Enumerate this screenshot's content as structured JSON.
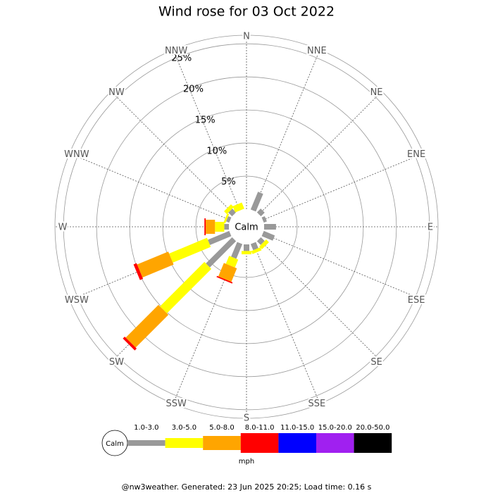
{
  "chart_data": {
    "type": "windrose",
    "title": "Wind rose for 03 Oct 2022",
    "directions": [
      "N",
      "NNE",
      "NE",
      "ENE",
      "E",
      "ESE",
      "SE",
      "SSE",
      "S",
      "SSW",
      "SW",
      "WSW",
      "W",
      "WNW",
      "NW",
      "NNW"
    ],
    "center_label": "Calm",
    "unit_label": "mph",
    "rlim": [
      0,
      26.3
    ],
    "rticks": [
      {
        "value": 5,
        "label": "5%"
      },
      {
        "value": 10,
        "label": "10%"
      },
      {
        "value": 15,
        "label": "15%"
      },
      {
        "value": 20,
        "label": "20%"
      },
      {
        "value": 25,
        "label": "25%"
      }
    ],
    "series": [
      {
        "name": "1.0-3.0",
        "color": "#999999",
        "values": [
          0,
          2.9,
          0.8,
          0.5,
          1.8,
          1.8,
          0.8,
          1.0,
          1.0,
          2.4,
          5.6,
          3.5,
          0.7,
          0.5,
          0.8,
          0
        ]
      },
      {
        "name": "3.0-5.0",
        "color": "#ffff00",
        "values": [
          0,
          0,
          0,
          0,
          0,
          0,
          0.6,
          0.5,
          0.5,
          1.3,
          9.5,
          6.2,
          1.4,
          0.3,
          0.6,
          1.0
        ]
      },
      {
        "name": "5.0-8.0",
        "color": "#ffa500",
        "values": [
          0,
          0,
          0,
          0,
          0,
          0,
          0,
          0,
          0,
          2.2,
          7.0,
          5.1,
          1.4,
          0,
          0,
          0
        ]
      },
      {
        "name": "8.0-11.0",
        "color": "#ff0000",
        "values": [
          0,
          0,
          0,
          0,
          0,
          0,
          0,
          0,
          0,
          0.2,
          0.4,
          0.5,
          0.2,
          0,
          0,
          0
        ]
      },
      {
        "name": "11.0-15.0",
        "color": "#0000ff",
        "values": [
          0,
          0,
          0,
          0,
          0,
          0,
          0,
          0,
          0,
          0,
          0,
          0,
          0,
          0,
          0,
          0
        ]
      },
      {
        "name": "15.0-20.0",
        "color": "#a020f0",
        "values": [
          0,
          0,
          0,
          0,
          0,
          0,
          0,
          0,
          0,
          0,
          0,
          0,
          0,
          0,
          0,
          0
        ]
      },
      {
        "name": "20.0-50.0",
        "color": "#000000",
        "values": [
          0,
          0,
          0,
          0,
          0,
          0,
          0,
          0,
          0,
          0,
          0,
          0,
          0,
          0,
          0,
          0
        ]
      }
    ],
    "footer": "@nw3weather. Generated: 23 Jun 2025 20:25; Load time: 0.16 s"
  }
}
